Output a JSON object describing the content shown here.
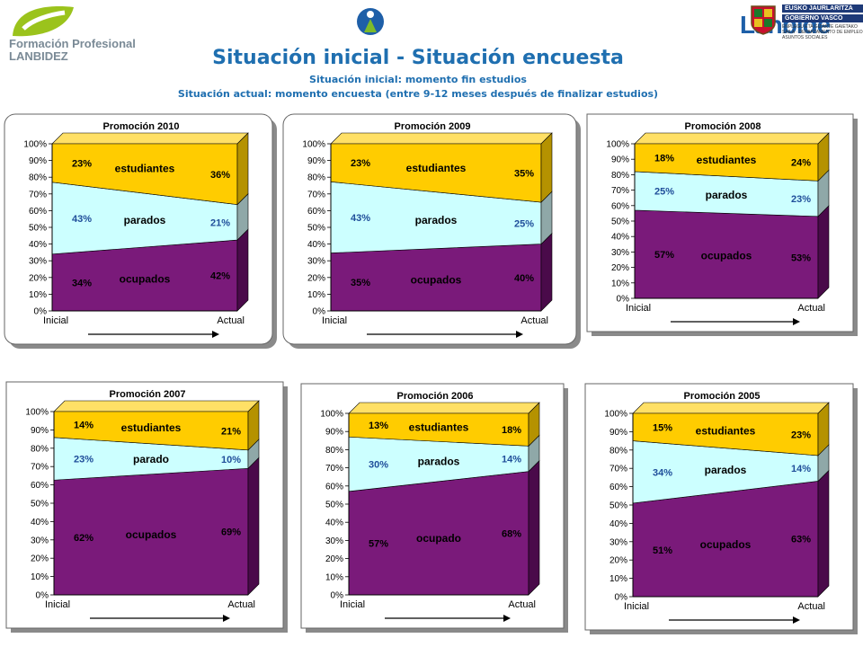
{
  "header": {
    "fp_logo": {
      "line1": "Formación Profesional",
      "line2": "LANBIDEZ"
    },
    "lanbide_logo": {
      "name": "Lanbide"
    },
    "gov_logo": {
      "line1": "EUSKO JAURLARITZA",
      "line2": "GOBIERNO VASCO",
      "sub": "ENPLEGU ETA GIZARTE GAIETAKO SAILA · DEPARTAMENTO DE EMPLEO Y ASUNTOS SOCIALES"
    },
    "title": "Situación inicial - Situación encuesta",
    "subtitle1": "Situación inicial: momento fin estudios",
    "subtitle2": "Situación actual: momento encuesta (entre 9-12 meses después de finalizar estudios)"
  },
  "colors": {
    "ocupados": "#7a1a7a",
    "parados": "#ccffff",
    "estudiantes": "#ffcc00",
    "side": "#aab7b8",
    "frame": "#c8c8c8"
  },
  "chart_data": [
    {
      "type": "area",
      "title": "Promoción 2010",
      "x": [
        "Inicial",
        "Actual"
      ],
      "ylim": [
        0,
        100
      ],
      "series": [
        {
          "name": "ocupados",
          "values": [
            34,
            42
          ]
        },
        {
          "name": "parados",
          "values": [
            43,
            21
          ]
        },
        {
          "name": "estudiantes",
          "values": [
            23,
            36
          ]
        }
      ],
      "labels": {
        "ocupados": "ocupados",
        "parados": "parados",
        "estudiantes": "estudiantes"
      }
    },
    {
      "type": "area",
      "title": "Promoción 2009",
      "x": [
        "Inicial",
        "Actual"
      ],
      "ylim": [
        0,
        100
      ],
      "series": [
        {
          "name": "ocupados",
          "values": [
            35,
            40
          ]
        },
        {
          "name": "parados",
          "values": [
            43,
            25
          ]
        },
        {
          "name": "estudiantes",
          "values": [
            23,
            35
          ]
        }
      ],
      "labels": {
        "ocupados": "ocupados",
        "parados": "parados",
        "estudiantes": "estudiantes"
      }
    },
    {
      "type": "area",
      "title": "Promoción 2008",
      "x": [
        "Inicial",
        "Actual"
      ],
      "ylim": [
        0,
        100
      ],
      "series": [
        {
          "name": "ocupados",
          "values": [
            57,
            53
          ]
        },
        {
          "name": "parados",
          "values": [
            25,
            23
          ]
        },
        {
          "name": "estudiantes",
          "values": [
            18,
            24
          ]
        }
      ],
      "labels": {
        "ocupados": "ocupados",
        "parados": "parados",
        "estudiantes": "estudiantes"
      }
    },
    {
      "type": "area",
      "title": "Promoción 2007",
      "x": [
        "Inicial",
        "Actual"
      ],
      "ylim": [
        0,
        100
      ],
      "series": [
        {
          "name": "ocupados",
          "values": [
            62,
            69
          ]
        },
        {
          "name": "parados",
          "values": [
            23,
            10
          ]
        },
        {
          "name": "estudiantes",
          "values": [
            14,
            21
          ]
        }
      ],
      "labels": {
        "ocupados": "ocupados",
        "parados": "parado",
        "estudiantes": "estudiantes"
      }
    },
    {
      "type": "area",
      "title": "Promoción 2006",
      "x": [
        "Inicial",
        "Actual"
      ],
      "ylim": [
        0,
        100
      ],
      "series": [
        {
          "name": "ocupados",
          "values": [
            57,
            68
          ]
        },
        {
          "name": "parados",
          "values": [
            30,
            14
          ]
        },
        {
          "name": "estudiantes",
          "values": [
            13,
            18
          ]
        }
      ],
      "labels": {
        "ocupados": "ocupado",
        "parados": "parados",
        "estudiantes": "estudiantes"
      }
    },
    {
      "type": "area",
      "title": "Promoción 2005",
      "x": [
        "Inicial",
        "Actual"
      ],
      "ylim": [
        0,
        100
      ],
      "series": [
        {
          "name": "ocupados",
          "values": [
            51,
            63
          ]
        },
        {
          "name": "parados",
          "values": [
            34,
            14
          ]
        },
        {
          "name": "estudiantes",
          "values": [
            15,
            23
          ]
        }
      ],
      "labels": {
        "ocupados": "ocupados",
        "parados": "parados",
        "estudiantes": "estudiantes"
      }
    }
  ]
}
